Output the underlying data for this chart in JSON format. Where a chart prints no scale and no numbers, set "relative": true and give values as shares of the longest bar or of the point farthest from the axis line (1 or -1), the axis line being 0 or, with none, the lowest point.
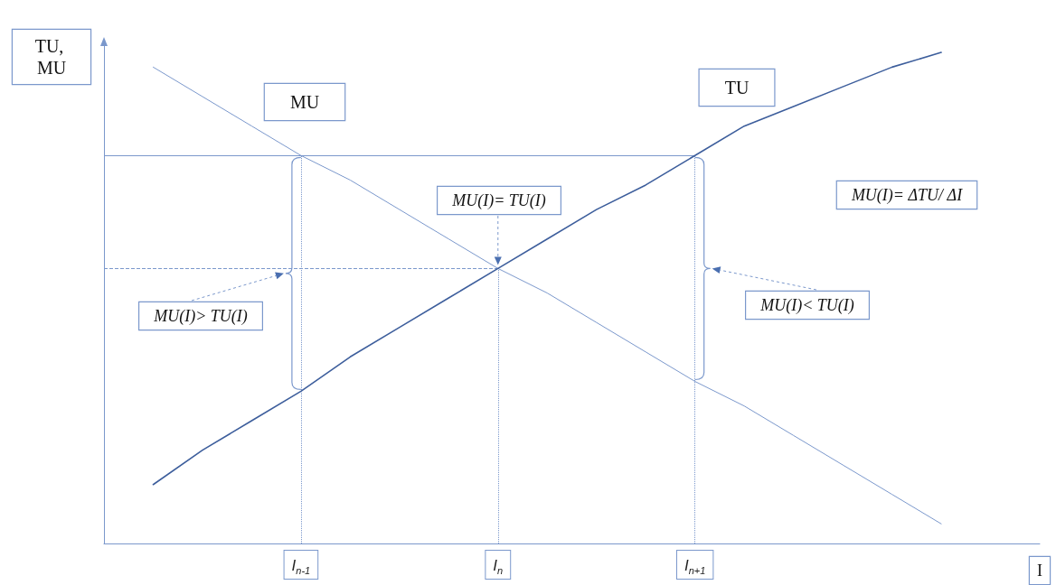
{
  "chart_data": {
    "type": "line",
    "relative": true,
    "ylabel": "TU, MU",
    "xlabel": "I",
    "marker": "none",
    "line_style": "solid",
    "categories": [
      null,
      null,
      null,
      null,
      "I$_{n-1}$",
      null,
      null,
      null,
      "I$_{n}$",
      null,
      null,
      null,
      "I$_{n+1}$",
      null,
      null,
      null,
      null,
      null,
      null,
      null
    ],
    "series": [
      {
        "name": "MU",
        "color": "#7b98cc",
        "values": [
          null,
          0.97,
          0.91,
          0.85,
          0.79,
          0.74,
          0.68,
          0.62,
          0.56,
          0.51,
          0.45,
          0.39,
          0.33,
          0.28,
          0.22,
          0.16,
          0.1,
          0.04,
          null,
          null
        ]
      },
      {
        "name": "TU",
        "color": "#3d5e9c",
        "values": [
          null,
          0.12,
          0.19,
          0.25,
          0.31,
          0.38,
          0.44,
          0.5,
          0.56,
          0.62,
          0.68,
          0.73,
          0.79,
          0.85,
          0.89,
          0.93,
          0.97,
          1.0,
          null,
          null
        ]
      }
    ],
    "ref_lines": [
      {
        "axis": "y",
        "value": 0.79,
        "color": "#7b98cc",
        "line_style": "solid"
      },
      {
        "axis": "y",
        "value": 0.56,
        "color": "#7b98cc",
        "line_style": "dashed"
      },
      {
        "axis": "x",
        "value": "I$_{n-1}$",
        "color": "#7b98cc",
        "line_style": "dotted"
      },
      {
        "axis": "x",
        "value": "I$_{n}$",
        "color": "#7b98cc",
        "line_style": "dotted"
      },
      {
        "axis": "x",
        "value": "I$_{n+1}$",
        "color": "#7b98cc",
        "line_style": "dotted"
      }
    ],
    "annotations": [
      "MU(I)= TU(I)",
      "MU(I)= ΔTU/ ΔI",
      "MU(I)> TU(I)",
      "MU(I)< TU(I)"
    ]
  }
}
